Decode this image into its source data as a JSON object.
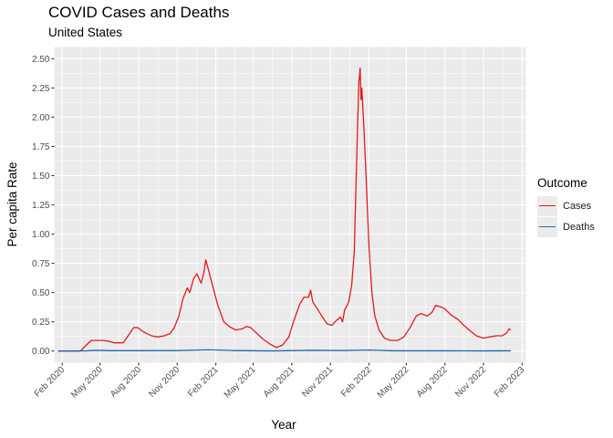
{
  "chart_data": {
    "type": "line",
    "title": "COVID Cases and Deaths",
    "subtitle": "United States",
    "xlabel": "Year",
    "ylabel": "Per capita Rate",
    "x_ticks": [
      "Feb 2020",
      "May 2020",
      "Aug 2020",
      "Nov 2020",
      "Feb 2021",
      "May 2021",
      "Aug 2021",
      "Nov 2021",
      "Feb 2022",
      "May 2022",
      "Aug 2022",
      "Nov 2022",
      "Feb 2023"
    ],
    "y_ticks": [
      "0.00",
      "0.25",
      "0.50",
      "0.75",
      "1.00",
      "1.25",
      "1.50",
      "1.75",
      "2.00",
      "2.25",
      "2.50"
    ],
    "ylim": [
      -0.1,
      2.6
    ],
    "xlim": [
      "2020-01-13",
      "2023-02-10"
    ],
    "grid": true,
    "legend_title": "Outcome",
    "legend_position": "right",
    "series": [
      {
        "name": "Cases",
        "color": "#e41a1c",
        "points": [
          [
            "2020-01-22",
            0.0
          ],
          [
            "2020-03-15",
            0.0
          ],
          [
            "2020-04-01",
            0.06
          ],
          [
            "2020-04-10",
            0.09
          ],
          [
            "2020-04-25",
            0.09
          ],
          [
            "2020-05-10",
            0.09
          ],
          [
            "2020-05-25",
            0.08
          ],
          [
            "2020-06-05",
            0.07
          ],
          [
            "2020-06-25",
            0.07
          ],
          [
            "2020-07-05",
            0.12
          ],
          [
            "2020-07-20",
            0.2
          ],
          [
            "2020-07-30",
            0.2
          ],
          [
            "2020-08-10",
            0.17
          ],
          [
            "2020-08-20",
            0.15
          ],
          [
            "2020-09-01",
            0.13
          ],
          [
            "2020-09-15",
            0.12
          ],
          [
            "2020-10-01",
            0.13
          ],
          [
            "2020-10-15",
            0.15
          ],
          [
            "2020-10-25",
            0.2
          ],
          [
            "2020-11-05",
            0.3
          ],
          [
            "2020-11-15",
            0.45
          ],
          [
            "2020-11-25",
            0.54
          ],
          [
            "2020-12-01",
            0.5
          ],
          [
            "2020-12-10",
            0.62
          ],
          [
            "2020-12-18",
            0.66
          ],
          [
            "2020-12-28",
            0.58
          ],
          [
            "2021-01-04",
            0.68
          ],
          [
            "2021-01-08",
            0.78
          ],
          [
            "2021-01-14",
            0.7
          ],
          [
            "2021-01-25",
            0.55
          ],
          [
            "2021-02-05",
            0.4
          ],
          [
            "2021-02-20",
            0.25
          ],
          [
            "2021-03-05",
            0.21
          ],
          [
            "2021-03-20",
            0.18
          ],
          [
            "2021-04-05",
            0.19
          ],
          [
            "2021-04-15",
            0.21
          ],
          [
            "2021-04-25",
            0.2
          ],
          [
            "2021-05-10",
            0.15
          ],
          [
            "2021-05-25",
            0.1
          ],
          [
            "2021-06-10",
            0.06
          ],
          [
            "2021-06-25",
            0.03
          ],
          [
            "2021-07-10",
            0.05
          ],
          [
            "2021-07-25",
            0.12
          ],
          [
            "2021-08-05",
            0.25
          ],
          [
            "2021-08-20",
            0.4
          ],
          [
            "2021-08-30",
            0.46
          ],
          [
            "2021-09-10",
            0.46
          ],
          [
            "2021-09-15",
            0.52
          ],
          [
            "2021-09-20",
            0.42
          ],
          [
            "2021-10-01",
            0.36
          ],
          [
            "2021-10-15",
            0.28
          ],
          [
            "2021-10-25",
            0.23
          ],
          [
            "2021-11-05",
            0.22
          ],
          [
            "2021-11-15",
            0.26
          ],
          [
            "2021-11-25",
            0.29
          ],
          [
            "2021-11-30",
            0.25
          ],
          [
            "2021-12-05",
            0.35
          ],
          [
            "2021-12-15",
            0.42
          ],
          [
            "2021-12-22",
            0.57
          ],
          [
            "2021-12-28",
            0.85
          ],
          [
            "2022-01-01",
            1.4
          ],
          [
            "2022-01-05",
            1.95
          ],
          [
            "2022-01-08",
            2.3
          ],
          [
            "2022-01-11",
            2.42
          ],
          [
            "2022-01-13",
            2.15
          ],
          [
            "2022-01-15",
            2.25
          ],
          [
            "2022-01-20",
            1.9
          ],
          [
            "2022-01-25",
            1.5
          ],
          [
            "2022-02-01",
            0.9
          ],
          [
            "2022-02-08",
            0.5
          ],
          [
            "2022-02-15",
            0.3
          ],
          [
            "2022-02-25",
            0.18
          ],
          [
            "2022-03-10",
            0.11
          ],
          [
            "2022-03-25",
            0.09
          ],
          [
            "2022-04-10",
            0.09
          ],
          [
            "2022-04-25",
            0.12
          ],
          [
            "2022-05-10",
            0.2
          ],
          [
            "2022-05-25",
            0.3
          ],
          [
            "2022-06-05",
            0.32
          ],
          [
            "2022-06-20",
            0.3
          ],
          [
            "2022-07-01",
            0.33
          ],
          [
            "2022-07-10",
            0.39
          ],
          [
            "2022-07-20",
            0.38
          ],
          [
            "2022-08-01",
            0.36
          ],
          [
            "2022-08-15",
            0.31
          ],
          [
            "2022-09-01",
            0.27
          ],
          [
            "2022-09-15",
            0.22
          ],
          [
            "2022-10-01",
            0.17
          ],
          [
            "2022-10-15",
            0.13
          ],
          [
            "2022-11-01",
            0.11
          ],
          [
            "2022-11-15",
            0.12
          ],
          [
            "2022-12-01",
            0.13
          ],
          [
            "2022-12-15",
            0.13
          ],
          [
            "2022-12-25",
            0.15
          ],
          [
            "2023-01-01",
            0.19
          ],
          [
            "2023-01-05",
            0.18
          ]
        ]
      },
      {
        "name": "Deaths",
        "color": "#2166ac",
        "points": [
          [
            "2020-01-22",
            0.0
          ],
          [
            "2020-04-01",
            0.002
          ],
          [
            "2020-04-20",
            0.006
          ],
          [
            "2020-06-01",
            0.003
          ],
          [
            "2020-08-01",
            0.003
          ],
          [
            "2020-11-01",
            0.004
          ],
          [
            "2021-01-15",
            0.01
          ],
          [
            "2021-03-15",
            0.004
          ],
          [
            "2021-06-15",
            0.001
          ],
          [
            "2021-09-15",
            0.006
          ],
          [
            "2021-12-01",
            0.004
          ],
          [
            "2022-02-01",
            0.008
          ],
          [
            "2022-04-01",
            0.002
          ],
          [
            "2022-08-01",
            0.002
          ],
          [
            "2022-11-01",
            0.001
          ],
          [
            "2023-01-05",
            0.002
          ]
        ]
      }
    ]
  }
}
